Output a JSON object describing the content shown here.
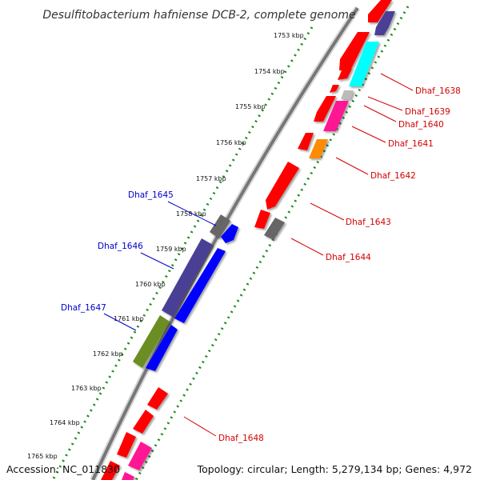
{
  "title": "Desulfitobacterium hafniense DCB-2, complete genome",
  "footer": {
    "accession": "Accession: NC_011830",
    "topology": "Topology: circular; Length: 5,279,134 bp; Genes: 4,972"
  },
  "ticks": [
    "1753 kbp",
    "1754 kbp",
    "1755 kbp",
    "1756 kbp",
    "1757 kbp",
    "1758 kbp",
    "1759 kbp",
    "1760 kbp",
    "1761 kbp",
    "1762 kbp",
    "1763 kbp",
    "1764 kbp",
    "1765 kbp"
  ],
  "genes_right": [
    "Dhaf_1638",
    "Dhaf_1639",
    "Dhaf_1640",
    "Dhaf_1641",
    "Dhaf_1642",
    "Dhaf_1643",
    "Dhaf_1644",
    "Dhaf_1648"
  ],
  "genes_left": [
    "Dhaf_1645",
    "Dhaf_1646",
    "Dhaf_1647"
  ],
  "colors": {
    "red": "#ff0000",
    "blue": "#0000ff",
    "navy": "#4a4096",
    "cyan": "#00ffff",
    "pink": "#ff1493",
    "orange": "#ff8c00",
    "olive": "#6b8e23",
    "gray": "#666666",
    "label_right": "#d40000",
    "label_left": "#0000c8"
  }
}
